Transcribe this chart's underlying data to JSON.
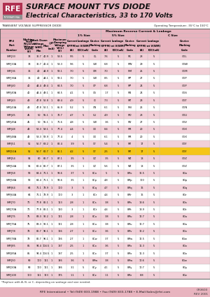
{
  "title_line1": "SURFACE MOUNT TVS DIODE",
  "title_line2": "Electrical Characteristics, 33 to 170 Volts",
  "header_bg": "#e8b4bf",
  "logo_red": "#b03050",
  "logo_gray": "#909090",
  "table_subheader": "TRANSIENT VOLTAGE SUPPRESSOR DIODE",
  "temp_note": "Operating Temperature: -55°C to 150°C",
  "row_bg_pink": "#f2d0d8",
  "row_bg_white": "#ffffff",
  "highlight_row_idx": 13,
  "highlight_bg": "#f5c518",
  "grid_color": "#bbbbbb",
  "footer_line": "*Replace with A, B, or C, depending on wattage and size needed.",
  "footer_bar_bg": "#e8b4bf",
  "footer_bar_text": "RFE International • Tel:(949) 833-1988 • Fax:(949) 833-1788 • E-Mail:Sales@rfei.com",
  "footer_code": "CR3603",
  "footer_rev": "REV 2001",
  "rows": [
    [
      "SMFJ33",
      "33",
      "36.7",
      "40.9",
      "1",
      "53.5",
      "9.5",
      "5",
      "CL",
      "7.6",
      "5",
      "ML",
      "28",
      "5",
      "GGL"
    ],
    [
      "SMFJ33A",
      "33",
      "36.7",
      "40.4",
      "1",
      "53.3",
      "9.6",
      "5",
      "CW",
      "6.8",
      "5",
      "MW",
      "29",
      "5",
      "GGW"
    ],
    [
      "SMFJ36",
      "36",
      "40",
      "44.9",
      "1",
      "58.1",
      "7.0",
      "5",
      "CM",
      "7.0",
      "5",
      "MM",
      "25",
      "5",
      "GGM"
    ],
    [
      "SMFJ36A",
      "36",
      "40",
      "44.1",
      "1",
      "58.1",
      "7.0",
      "5",
      "CW",
      "8.5",
      "5",
      "MP",
      "27",
      "5",
      "GGP"
    ],
    [
      "SMFJ40",
      "40",
      "44.4",
      "49.4",
      "1",
      "64.5",
      "7.0",
      "5",
      "CP",
      "6.8",
      "5",
      "MP",
      "24",
      "5",
      "GGP"
    ],
    [
      "SMFJ40A",
      "40",
      "44.4",
      "49.1",
      "1",
      "64.5",
      "4.1",
      "5",
      "CS",
      "1.7",
      "5",
      "MS",
      "24",
      "5",
      "GGS"
    ],
    [
      "SMFJ43",
      "43",
      "47.8",
      "52.8",
      "1",
      "69.4",
      "4.9",
      "5",
      "CI",
      "7.3",
      "5",
      "MT",
      "23",
      "5",
      "GGT"
    ],
    [
      "SMFJ43A",
      "43",
      "47.8",
      "52.1",
      "1",
      "65.9",
      "5.2",
      "5",
      "CN",
      "6.1",
      "5",
      "MN",
      "26",
      "5",
      "GGN"
    ],
    [
      "SMFJ45",
      "45",
      "50",
      "55.1",
      "1",
      "72.7",
      "4.7",
      "5",
      "CU",
      "4.9",
      "5",
      "MU",
      "28",
      "5",
      "GGU"
    ],
    [
      "SMFJ45A",
      "45",
      "50",
      "55.1",
      "1",
      "71.6",
      "4.8",
      "5",
      "CW",
      "3.6",
      "5",
      "MV",
      "27",
      "5",
      "GGV"
    ],
    [
      "SMFJ48",
      "48",
      "53.3",
      "59.1",
      "1",
      "77.4",
      "4.4",
      "5",
      "CX",
      "8.4",
      "5",
      "MX",
      "20",
      "5",
      "GGX"
    ],
    [
      "SMFJ48A",
      "48",
      "53.3",
      "58.9",
      "1",
      "77.4",
      "4",
      "5",
      "CX",
      "6.1",
      "5",
      "MX",
      "20",
      "5",
      "GGX"
    ],
    [
      "SMFJ51",
      "51",
      "56.7",
      "63.2",
      "1",
      "82.4",
      "3.9",
      "5",
      "CY",
      "5.4",
      "5",
      "MY",
      "17",
      "5",
      "GGY"
    ],
    [
      "SMFJ51A",
      "51",
      "56.7",
      "62.7",
      "1",
      "81.1",
      "4.2",
      "5",
      "CY",
      "2.5",
      "5",
      "MY",
      "17",
      "5",
      "GGY"
    ],
    [
      "SMFJ54",
      "54",
      "60",
      "66.7",
      "1",
      "87.1",
      "3.5",
      "5",
      "CZ",
      "3.5",
      "5",
      "MZ",
      "18",
      "5",
      "GGZ"
    ],
    [
      "SMFJ54A",
      "54",
      "60.4",
      "66.7",
      "1",
      "87.1",
      "3.5",
      "1",
      "CZ",
      "5.6",
      "5",
      "MZ",
      "18",
      "5",
      "GGZ"
    ],
    [
      "SMFJ58",
      "58",
      "64.4",
      "71.1",
      "1",
      "93.6",
      "3.7",
      "5",
      "8Co",
      "5",
      "5",
      "8Mo",
      "16.5",
      "5",
      "8Go"
    ],
    [
      "SMFJ58A",
      "58",
      "64.4",
      "71.1",
      "1",
      "93.6",
      "3.5",
      "1",
      "8Cp",
      "4.8",
      "5",
      "8Mp",
      "100",
      "5",
      "8Gp"
    ],
    [
      "SMFJ64",
      "64",
      "71.1",
      "78.9",
      "1",
      "100",
      "3",
      "5",
      "8Cq",
      "4.7",
      "5",
      "8Mq",
      "16",
      "5",
      "8Gq"
    ],
    [
      "SMFJ64A",
      "64",
      "71.1",
      "78.9",
      "1",
      "100",
      "3",
      "1",
      "8Cr",
      "4.4",
      "5",
      "8Mr",
      "16",
      "5",
      "8Gr"
    ],
    [
      "SMFJ70",
      "70",
      "77.8",
      "86.1",
      "1",
      "113",
      "2.8",
      "1",
      "8Cs",
      "3.8",
      "5",
      "8Ms",
      "13.6",
      "5",
      "8Gs"
    ],
    [
      "SMFJ70A",
      "70",
      "77.8",
      "86.1",
      "1",
      "110",
      "3",
      "1",
      "8Ct",
      "4.4",
      "5",
      "8Mt",
      "13.9",
      "5",
      "8Gt"
    ],
    [
      "SMFJ75",
      "75",
      "83.3",
      "92.2",
      "1",
      "121",
      "2.8",
      "1",
      "8Cu",
      "3.8",
      "5",
      "8Mu",
      "12.7",
      "5",
      "8Gu"
    ],
    [
      "SMFJ75A",
      "75",
      "83.3",
      "92.1",
      "1",
      "121",
      "2.8",
      "1",
      "8Cu",
      "3.8",
      "5",
      "8Mu",
      "12.7",
      "5",
      "8Gu"
    ],
    [
      "SMFJ78",
      "78",
      "86.7",
      "96.1",
      "1",
      "126",
      "2.7",
      "1",
      "8Cv",
      "3.6",
      "5",
      "8Mv",
      "12.2",
      "5",
      "8Gv"
    ],
    [
      "SMFJ78A",
      "78",
      "86.7",
      "96.1",
      "1",
      "126",
      "2.7",
      "1",
      "8Cw",
      "3.7",
      "5",
      "8Mw",
      "12.5",
      "5",
      "8Gw"
    ],
    [
      "SMFJ85",
      "85",
      "94.4",
      "104.5",
      "1",
      "137",
      "2.5",
      "1",
      "8Cx",
      "3.6",
      "5",
      "8Mx",
      "11.3",
      "5",
      "8Gx"
    ],
    [
      "SMFJ85A",
      "85",
      "94.4",
      "104.5",
      "1",
      "137",
      "2.5",
      "1",
      "8Cx",
      "3.7",
      "5",
      "8Mx",
      "11.3",
      "5",
      "8Gx"
    ],
    [
      "SMFJ90",
      "90",
      "100",
      "111",
      "1",
      "146",
      "3.6",
      "5",
      "8Mw",
      "3.8",
      "5",
      "8Mw",
      "10.6",
      "5",
      "8Gw"
    ],
    [
      "SMFJ90A",
      "90",
      "100",
      "111",
      "1",
      "146",
      "3.1",
      "5",
      "8Cy",
      "4.1",
      "5",
      "8My",
      "10.7",
      "5",
      "8Gy"
    ],
    [
      "SMFJ100",
      "100",
      "111",
      "123",
      "1",
      "175",
      "1.1",
      "1",
      "8Cz",
      "1.1",
      "5",
      "8Mz",
      "8.8",
      "5",
      "8Gz"
    ]
  ]
}
